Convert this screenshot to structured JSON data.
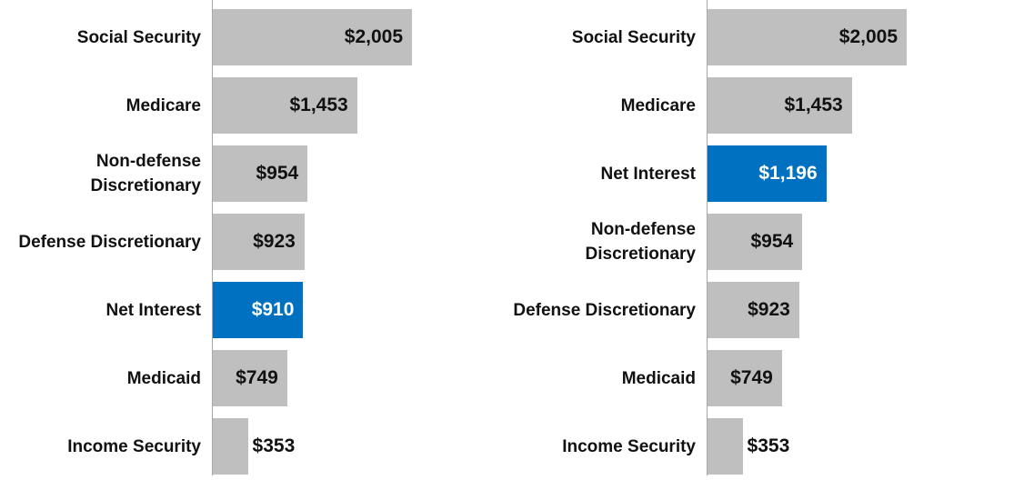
{
  "chart_data": [
    {
      "type": "bar",
      "orientation": "horizontal",
      "categories": [
        "Social Security",
        "Medicare",
        "Non-defense\nDiscretionary",
        "Defense Discretionary",
        "Net Interest",
        "Medicaid",
        "Income Security"
      ],
      "values": [
        2005,
        1453,
        954,
        923,
        910,
        749,
        353
      ],
      "value_labels": [
        "$2,005",
        "$1,453",
        "$954",
        "$923",
        "$910",
        "$749",
        "$353"
      ],
      "colors": [
        "#bfbfbf",
        "#bfbfbf",
        "#bfbfbf",
        "#bfbfbf",
        "#0070c0",
        "#bfbfbf",
        "#bfbfbf"
      ],
      "xlim": [
        0,
        2005
      ]
    },
    {
      "type": "bar",
      "orientation": "horizontal",
      "categories": [
        "Social Security",
        "Medicare",
        "Net Interest",
        "Non-defense\nDiscretionary",
        "Defense Discretionary",
        "Medicaid",
        "Income Security"
      ],
      "values": [
        2005,
        1453,
        1196,
        954,
        923,
        749,
        353
      ],
      "value_labels": [
        "$2,005",
        "$1,453",
        "$1,196",
        "$954",
        "$923",
        "$749",
        "$353"
      ],
      "colors": [
        "#bfbfbf",
        "#bfbfbf",
        "#0070c0",
        "#bfbfbf",
        "#bfbfbf",
        "#bfbfbf",
        "#bfbfbf"
      ],
      "xlim": [
        0,
        2005
      ]
    }
  ]
}
